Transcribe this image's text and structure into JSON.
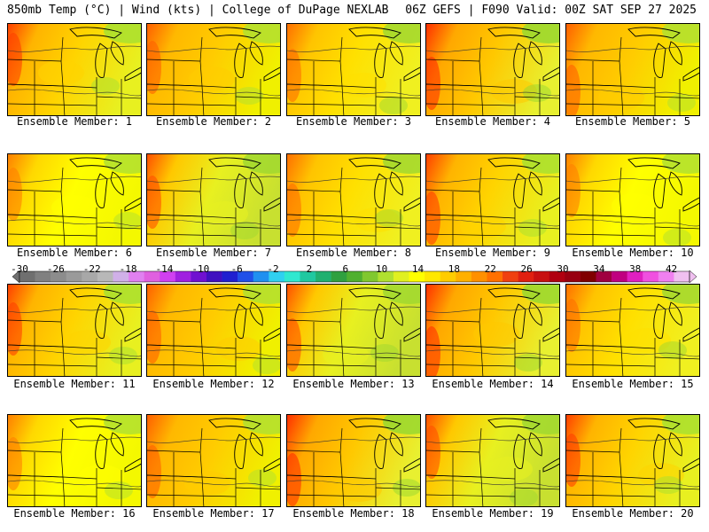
{
  "header": {
    "left": "850mb Temp (°C) | Wind (kts) | College of DuPage NEXLAB",
    "right": "06Z GEFS | F090 Valid: 00Z SAT SEP 27 2025"
  },
  "colorbar": {
    "labels": [
      "-30",
      "-26",
      "-22",
      "-18",
      "-14",
      "-10",
      "-6",
      "-2",
      "2",
      "6",
      "10",
      "14",
      "18",
      "22",
      "26",
      "30",
      "34",
      "38",
      "42"
    ],
    "min": -30,
    "max": 44,
    "step": 2,
    "colors": [
      "#6f6f6f",
      "#808080",
      "#8c8c8c",
      "#9a9a9a",
      "#a8a8a8",
      "#b8b8b8",
      "#d0b0e8",
      "#e080f0",
      "#e060e0",
      "#d040f0",
      "#a020e0",
      "#7010d0",
      "#4010c0",
      "#2020d0",
      "#2050e8",
      "#2090f0",
      "#30d0f0",
      "#30e8d0",
      "#20c8a0",
      "#20b070",
      "#30a040",
      "#50b030",
      "#80c830",
      "#b0e030",
      "#e0f020",
      "#ffff00",
      "#ffe800",
      "#ffcc00",
      "#ffb000",
      "#ff9000",
      "#ff7000",
      "#f04010",
      "#e02010",
      "#c81010",
      "#b00010",
      "#980010",
      "#800000",
      "#a00040",
      "#c00080",
      "#e020c0",
      "#f050e0",
      "#f080f0",
      "#f0c0f0"
    ]
  },
  "panels": [
    {
      "member": "Ensemble Member: 1",
      "variant": 0
    },
    {
      "member": "Ensemble Member: 2",
      "variant": 1
    },
    {
      "member": "Ensemble Member: 3",
      "variant": 2
    },
    {
      "member": "Ensemble Member: 4",
      "variant": 3
    },
    {
      "member": "Ensemble Member: 5",
      "variant": 1
    },
    {
      "member": "Ensemble Member: 6",
      "variant": 4
    },
    {
      "member": "Ensemble Member: 7",
      "variant": 5
    },
    {
      "member": "Ensemble Member: 8",
      "variant": 2
    },
    {
      "member": "Ensemble Member: 9",
      "variant": 0
    },
    {
      "member": "Ensemble Member: 10",
      "variant": 4
    },
    {
      "member": "Ensemble Member: 11",
      "variant": 0
    },
    {
      "member": "Ensemble Member: 12",
      "variant": 1
    },
    {
      "member": "Ensemble Member: 13",
      "variant": 5
    },
    {
      "member": "Ensemble Member: 14",
      "variant": 3
    },
    {
      "member": "Ensemble Member: 15",
      "variant": 2
    },
    {
      "member": "Ensemble Member: 16",
      "variant": 4
    },
    {
      "member": "Ensemble Member: 17",
      "variant": 1
    },
    {
      "member": "Ensemble Member: 18",
      "variant": 3
    },
    {
      "member": "Ensemble Member: 19",
      "variant": 5
    },
    {
      "member": "Ensemble Member: 20",
      "variant": 0
    }
  ]
}
